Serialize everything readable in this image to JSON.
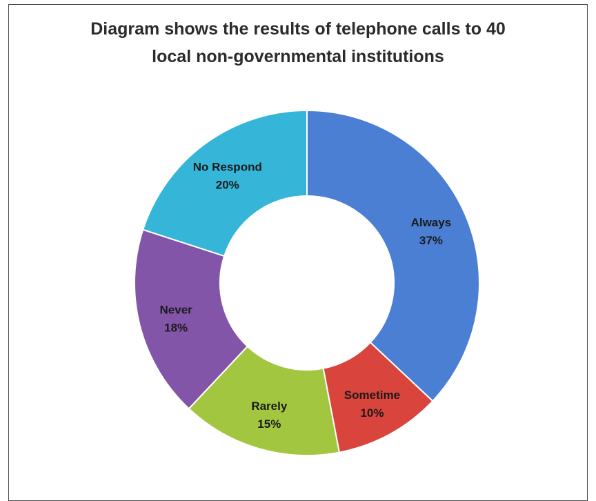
{
  "chart_data": {
    "type": "pie",
    "title_lines": [
      "Diagram shows  the results of telephone calls to 40",
      "local non-governmental institutions"
    ],
    "categories": [
      "Always",
      "Sometime",
      "Rarely",
      "Never",
      "No Respond"
    ],
    "values": [
      37,
      10,
      15,
      18,
      20
    ],
    "value_labels": [
      "37%",
      "10%",
      "15%",
      "18%",
      "20%"
    ],
    "donut": true,
    "colors": [
      "#4a7fd4",
      "#d9443c",
      "#a3c640",
      "#8355a8",
      "#35b5d8"
    ],
    "legend": "none"
  }
}
